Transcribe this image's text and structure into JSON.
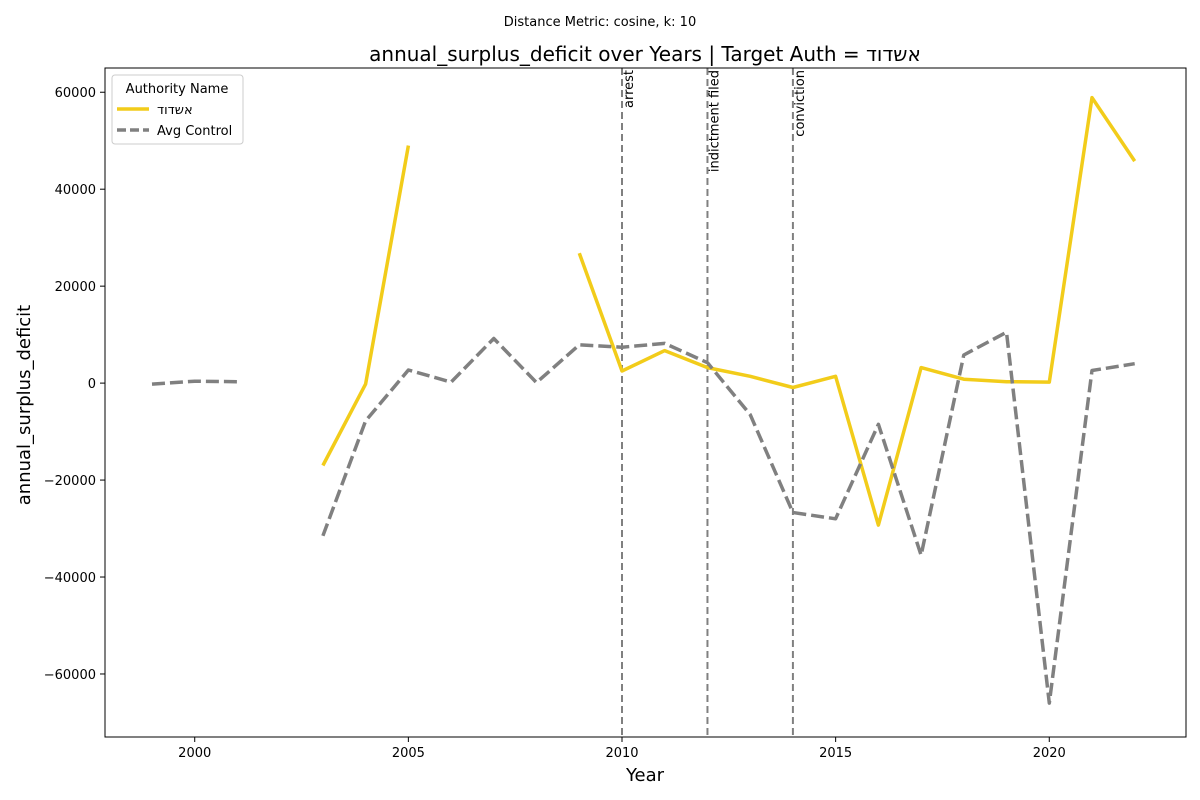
{
  "chart_data": {
    "type": "line",
    "suptitle": "Distance Metric: cosine, k: 10",
    "title": "annual_surplus_deficit over Years | Target Auth = אשדוד",
    "xlabel": "Year",
    "ylabel": "annual_surplus_deficit",
    "xlim": [
      1997.9,
      2023.2
    ],
    "ylim": [
      -73000,
      65000
    ],
    "xticks": [
      2000,
      2005,
      2010,
      2015,
      2020
    ],
    "yticks": [
      -60000,
      -40000,
      -20000,
      0,
      20000,
      40000,
      60000
    ],
    "ytick_labels": [
      "−60000",
      "−40000",
      "−20000",
      "0",
      "20000",
      "40000",
      "60000"
    ],
    "grid": false,
    "legend": {
      "title": "Authority Name",
      "placement": "top-left"
    },
    "series": [
      {
        "name": "אשדוד",
        "color": "#f2cc1a",
        "style": "solid",
        "points": [
          [
            2003,
            -17000
          ],
          [
            2004,
            -200
          ],
          [
            2005,
            49000
          ],
          [
            2006,
            null
          ],
          [
            2007,
            null
          ],
          [
            2008,
            null
          ],
          [
            2009,
            26800
          ],
          [
            2010,
            2500
          ],
          [
            2011,
            6700
          ],
          [
            2012,
            3200
          ],
          [
            2013,
            1400
          ],
          [
            2014,
            -900
          ],
          [
            2015,
            1400
          ],
          [
            2016,
            -29300
          ],
          [
            2017,
            3200
          ],
          [
            2018,
            800
          ],
          [
            2019,
            300
          ],
          [
            2020,
            200
          ],
          [
            2021,
            58900
          ],
          [
            2022,
            45800
          ]
        ]
      },
      {
        "name": "Avg Control",
        "color": "#808080",
        "style": "dashed",
        "points": [
          [
            1999,
            -200
          ],
          [
            2000,
            400
          ],
          [
            2001,
            300
          ],
          [
            2002,
            null
          ],
          [
            2003,
            -31500
          ],
          [
            2004,
            -7800
          ],
          [
            2005,
            2700
          ],
          [
            2006,
            200
          ],
          [
            2007,
            9200
          ],
          [
            2008,
            100
          ],
          [
            2009,
            7900
          ],
          [
            2010,
            7400
          ],
          [
            2011,
            8200
          ],
          [
            2012,
            4200
          ],
          [
            2013,
            -6500
          ],
          [
            2014,
            -26700
          ],
          [
            2015,
            -28000
          ],
          [
            2016,
            -8500
          ],
          [
            2017,
            -35500
          ],
          [
            2018,
            5800
          ],
          [
            2019,
            10500
          ],
          [
            2020,
            -66000
          ],
          [
            2021,
            2600
          ],
          [
            2022,
            4000
          ]
        ]
      }
    ],
    "events": [
      {
        "year": 2010,
        "label": "arrest"
      },
      {
        "year": 2012,
        "label": "indictment filed"
      },
      {
        "year": 2014,
        "label": "conviction"
      }
    ]
  }
}
